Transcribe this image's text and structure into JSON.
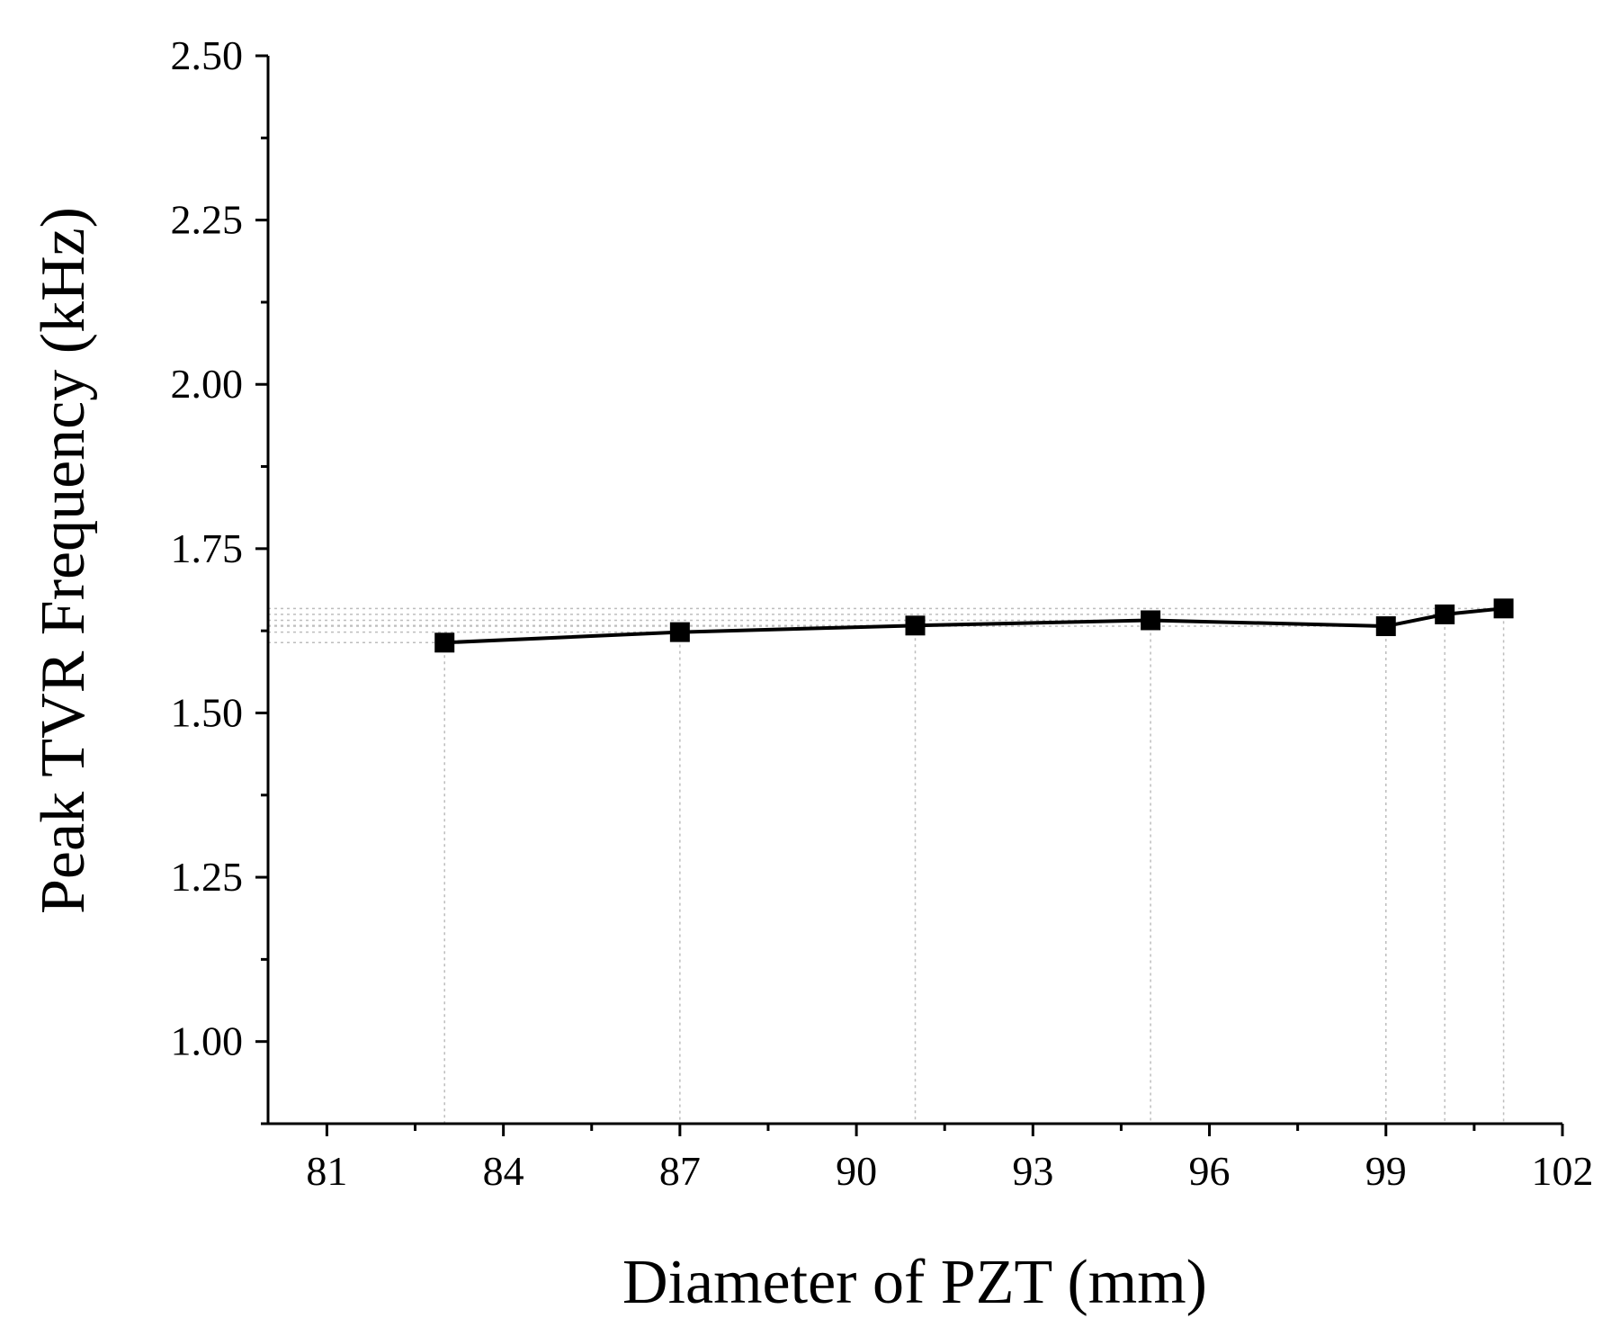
{
  "chart_data": {
    "type": "line",
    "title": "",
    "xlabel": "Diameter of PZT (mm)",
    "ylabel": "Peak TVR Frequency (kHz)",
    "xlim": [
      80,
      102
    ],
    "ylim": [
      0.875,
      2.5
    ],
    "xticks": [
      81,
      84,
      87,
      90,
      93,
      96,
      99,
      102
    ],
    "xtick_labels": [
      "81",
      "84",
      "87",
      "90",
      "93",
      "96",
      "99",
      "102"
    ],
    "yticks": [
      1.0,
      1.25,
      1.5,
      1.75,
      2.0,
      2.25,
      2.5
    ],
    "ytick_labels": [
      "1.00",
      "1.25",
      "1.50",
      "1.75",
      "2.00",
      "2.25",
      "2.50"
    ],
    "grid": false,
    "drop_lines": true,
    "series": [
      {
        "name": "Peak TVR Frequency",
        "marker": "square",
        "color": "#000000",
        "x": [
          83,
          87,
          91,
          95,
          99,
          100,
          101
        ],
        "y": [
          1.607,
          1.623,
          1.633,
          1.641,
          1.632,
          1.65,
          1.659
        ]
      }
    ]
  }
}
